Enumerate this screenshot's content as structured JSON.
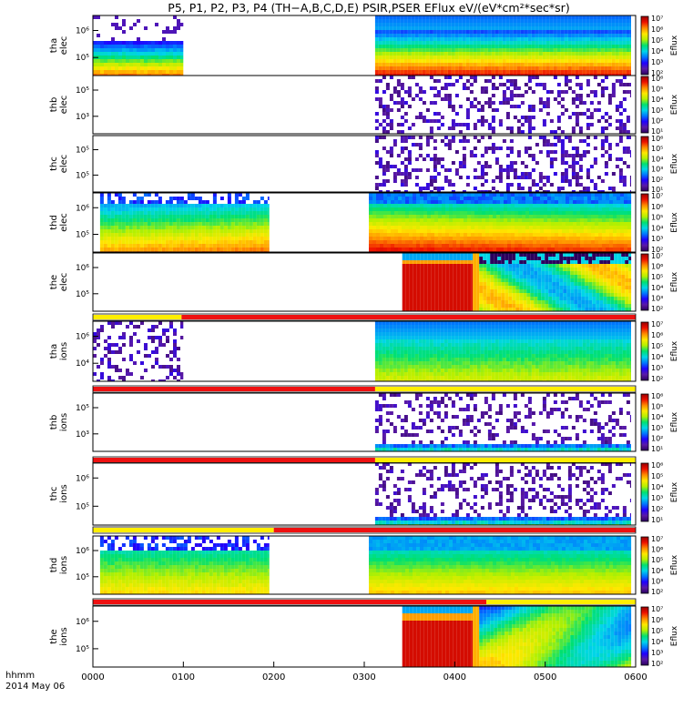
{
  "title": "P5, P1, P2, P3, P4 (TH−A,B,C,D,E) PSIR,PSER EFlux eV/(eV*cm²*sec*sr)",
  "footer": {
    "line1": "hhmm",
    "line2": "2014 May 06"
  },
  "colors": {
    "flag_red": "#ee1111",
    "flag_yellow": "#ffee00",
    "flag_black": "#000000",
    "colorscale": [
      "#2b005e",
      "#5a1aa6",
      "#1f00ff",
      "#0077ff",
      "#00d6e8",
      "#00e070",
      "#b4f000",
      "#ffe800",
      "#ff8a00",
      "#ee1100",
      "#990000"
    ]
  },
  "chart_data": {
    "type": "heatmap",
    "x_axis": {
      "label": "hhmm",
      "date": "2014 May 06",
      "ticks": [
        "0000",
        "0100",
        "0200",
        "0300",
        "0400",
        "0500",
        "0600"
      ],
      "range_hours": [
        0,
        6
      ]
    },
    "panels": [
      {
        "ylabel": [
          "tha",
          "elec"
        ],
        "yticks": [
          "10⁶",
          "10⁵"
        ],
        "zlabel": "Eflux",
        "cbticks": [
          "10⁷",
          "10⁶",
          "10⁵",
          "10⁴",
          "10³",
          "10²"
        ],
        "blocks": [
          {
            "t0": 0.0,
            "t1": 1.0,
            "pattern": "tha-elec-1"
          },
          {
            "t0": 3.12,
            "t1": 5.95,
            "pattern": "tha-elec-2"
          }
        ]
      },
      {
        "ylabel": [
          "thb",
          "elec"
        ],
        "yticks": [
          "10⁵",
          "10³"
        ],
        "zlabel": "Eflux",
        "cbticks": [
          "10⁶",
          "10⁵",
          "10⁴",
          "10³",
          "10²",
          "10¹"
        ],
        "blocks": [
          {
            "t0": 3.12,
            "t1": 5.95,
            "pattern": "noise"
          }
        ]
      },
      {
        "ylabel": [
          "thc",
          "elec"
        ],
        "yticks": [
          "10⁵",
          "10⁵"
        ],
        "zlabel": "Eflux",
        "cbticks": [
          "10⁶",
          "10⁵",
          "10⁴",
          "10³",
          "10²",
          "10¹"
        ],
        "blocks": [
          {
            "t0": 3.12,
            "t1": 5.95,
            "pattern": "noise"
          }
        ]
      },
      {
        "ylabel": [
          "thd",
          "elec"
        ],
        "yticks": [
          "10⁶",
          "10⁵"
        ],
        "zlabel": "Eflux",
        "cbticks": [
          "10⁷",
          "10⁶",
          "10⁵",
          "10⁴",
          "10³",
          "10²"
        ],
        "blocks": [
          {
            "t0": 0.08,
            "t1": 1.95,
            "pattern": "thd-elec-1"
          },
          {
            "t0": 3.05,
            "t1": 5.95,
            "pattern": "thd-elec-2"
          }
        ]
      },
      {
        "ylabel": [
          "the",
          "elec"
        ],
        "yticks": [
          "10⁶",
          "10⁵"
        ],
        "zlabel": "Eflux",
        "cbticks": [
          "10⁷",
          "10⁶",
          "10⁵",
          "10⁴",
          "10³",
          "10²"
        ],
        "blocks": [
          {
            "t0": 3.42,
            "t1": 4.2,
            "pattern": "the-red"
          },
          {
            "t0": 4.2,
            "t1": 4.27,
            "pattern": "the-stripe"
          },
          {
            "t0": 4.27,
            "t1": 5.95,
            "pattern": "the-elec-2"
          }
        ]
      },
      {
        "ylabel": [
          "tha",
          "ions"
        ],
        "yticks": [
          "10⁶",
          "10⁴"
        ],
        "zlabel": "Eflux",
        "cbticks": [
          "10⁷",
          "10⁶",
          "10⁵",
          "10⁴",
          "10³",
          "10²"
        ],
        "blocks": [
          {
            "t0": 0.0,
            "t1": 1.0,
            "pattern": "noise"
          },
          {
            "t0": 3.12,
            "t1": 5.95,
            "pattern": "ion-blue"
          }
        ]
      },
      {
        "ylabel": [
          "thb",
          "ions"
        ],
        "yticks": [
          "10⁵",
          "10³"
        ],
        "zlabel": "Eflux",
        "cbticks": [
          "10⁶",
          "10⁵",
          "10⁴",
          "10³",
          "10²",
          "10¹"
        ],
        "blocks": [
          {
            "t0": 3.12,
            "t1": 5.95,
            "pattern": "ion-sparse"
          }
        ]
      },
      {
        "ylabel": [
          "thc",
          "ions"
        ],
        "yticks": [
          "10⁶",
          "10⁵"
        ],
        "zlabel": "Eflux",
        "cbticks": [
          "10⁶",
          "10⁵",
          "10⁴",
          "10³",
          "10²",
          "10¹"
        ],
        "blocks": [
          {
            "t0": 3.12,
            "t1": 5.95,
            "pattern": "ion-sparse"
          }
        ]
      },
      {
        "ylabel": [
          "thd",
          "ions"
        ],
        "yticks": [
          "10⁶",
          "10⁵"
        ],
        "zlabel": "Eflux",
        "cbticks": [
          "10⁷",
          "10⁶",
          "10⁵",
          "10⁴",
          "10³",
          "10²"
        ],
        "blocks": [
          {
            "t0": 0.08,
            "t1": 1.95,
            "pattern": "thd-ion-1"
          },
          {
            "t0": 3.05,
            "t1": 5.95,
            "pattern": "thd-ion-2"
          }
        ]
      },
      {
        "ylabel": [
          "the",
          "ions"
        ],
        "yticks": [
          "10⁶",
          "10⁵"
        ],
        "zlabel": "Eflux",
        "cbticks": [
          "10⁷",
          "10⁶",
          "10⁵",
          "10⁴",
          "10³",
          "10²"
        ],
        "blocks": [
          {
            "t0": 3.42,
            "t1": 4.2,
            "pattern": "the-red"
          },
          {
            "t0": 4.2,
            "t1": 4.27,
            "pattern": "the-stripe"
          },
          {
            "t0": 4.27,
            "t1": 5.95,
            "pattern": "the-ion-2"
          }
        ]
      }
    ],
    "mode_bars": [
      {
        "after_panel": 4,
        "segments": [
          {
            "t0": 0,
            "t1": 0.98,
            "color": "yellow"
          },
          {
            "t0": 0.98,
            "t1": 6,
            "color": "red"
          }
        ]
      },
      {
        "after_panel": 5,
        "segments": [
          {
            "t0": 0,
            "t1": 3.12,
            "color": "red"
          },
          {
            "t0": 3.12,
            "t1": 6,
            "color": "yellow"
          }
        ]
      },
      {
        "after_panel": 6,
        "segments": [
          {
            "t0": 0,
            "t1": 3.12,
            "color": "red"
          },
          {
            "t0": 3.12,
            "t1": 6,
            "color": "yellow"
          }
        ]
      },
      {
        "after_panel": 7,
        "segments": [
          {
            "t0": 0,
            "t1": 2.0,
            "color": "yellow"
          },
          {
            "t0": 2.0,
            "t1": 6,
            "color": "red"
          }
        ]
      },
      {
        "after_panel": 8,
        "segments": [
          {
            "t0": 0,
            "t1": 4.35,
            "color": "red"
          },
          {
            "t0": 4.35,
            "t1": 6,
            "color": "yellow"
          }
        ]
      }
    ]
  }
}
